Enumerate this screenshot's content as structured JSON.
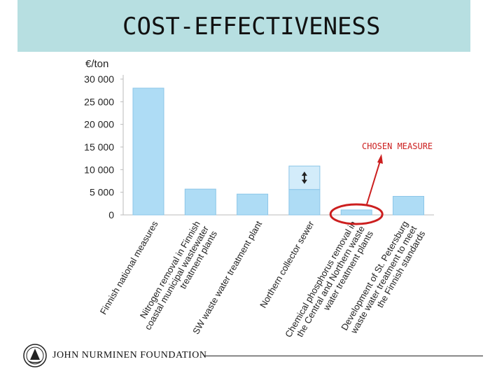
{
  "slide": {
    "title": "COST-EFFECTIVENESS"
  },
  "chart_data": {
    "type": "bar",
    "ylabel": "€/ton",
    "ylim": [
      0,
      30000
    ],
    "yticks": [
      0,
      5000,
      10000,
      15000,
      20000,
      25000,
      30000
    ],
    "ytick_labels": [
      "0",
      "5 000",
      "10 000",
      "15 000",
      "20 000",
      "25 000",
      "30 000"
    ],
    "grid": false,
    "categories": [
      [
        "Finnish national measures"
      ],
      [
        "Nitrogen removal in Finnish",
        "coastal municipal wastewater",
        "treatment plants"
      ],
      [
        "SW waste water treatment plant"
      ],
      [
        "Northern collector sewer"
      ],
      [
        "Chemical phosphorus removal in",
        "the Central and Northern waste",
        "water treatment plants"
      ],
      [
        "Development of St. Petersburg",
        "waste water treatment to meet",
        "the Finnish standards"
      ]
    ],
    "values": [
      28000,
      5700,
      4600,
      5600,
      1100,
      4100
    ],
    "range_upper": [
      null,
      null,
      null,
      10800,
      null,
      null
    ],
    "bar_color": "#aedcf5",
    "bar_border": "#8cc6e8",
    "range_color": "#d3ecfa",
    "annotation": {
      "text": "CHOSEN MEASURE",
      "color": "#cc1f1f",
      "target_index": 4
    }
  },
  "footer": {
    "organization": "JOHN NURMINEN FOUNDATION",
    "logo_icon": "foundation-emblem-icon"
  }
}
